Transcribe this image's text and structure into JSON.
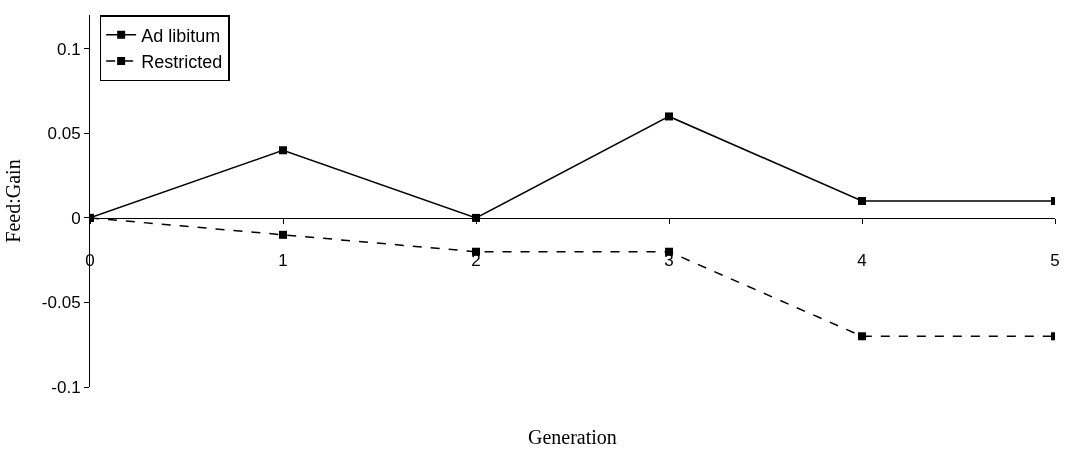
{
  "chart_data": {
    "type": "line",
    "xlabel": "Generation",
    "ylabel": "Feed:Gain",
    "x": [
      0,
      1,
      2,
      3,
      4,
      5
    ],
    "series": [
      {
        "name": "Ad libitum",
        "color": "#000000",
        "line_style": "solid",
        "values": [
          0,
          0.04,
          0,
          0.06,
          0.01,
          0.01
        ]
      },
      {
        "name": "Restricted",
        "color": "#000000",
        "line_style": "dashed",
        "values": [
          0,
          -0.01,
          -0.02,
          -0.02,
          -0.07,
          -0.07
        ]
      }
    ],
    "xlim": [
      0,
      5
    ],
    "xticks": [
      0,
      1,
      2,
      3,
      4,
      5
    ],
    "ylim": [
      -0.1,
      0.12
    ],
    "yticks": [
      -0.1,
      -0.05,
      0,
      0.05,
      0.1
    ],
    "marker": "square",
    "legend": "top left"
  }
}
